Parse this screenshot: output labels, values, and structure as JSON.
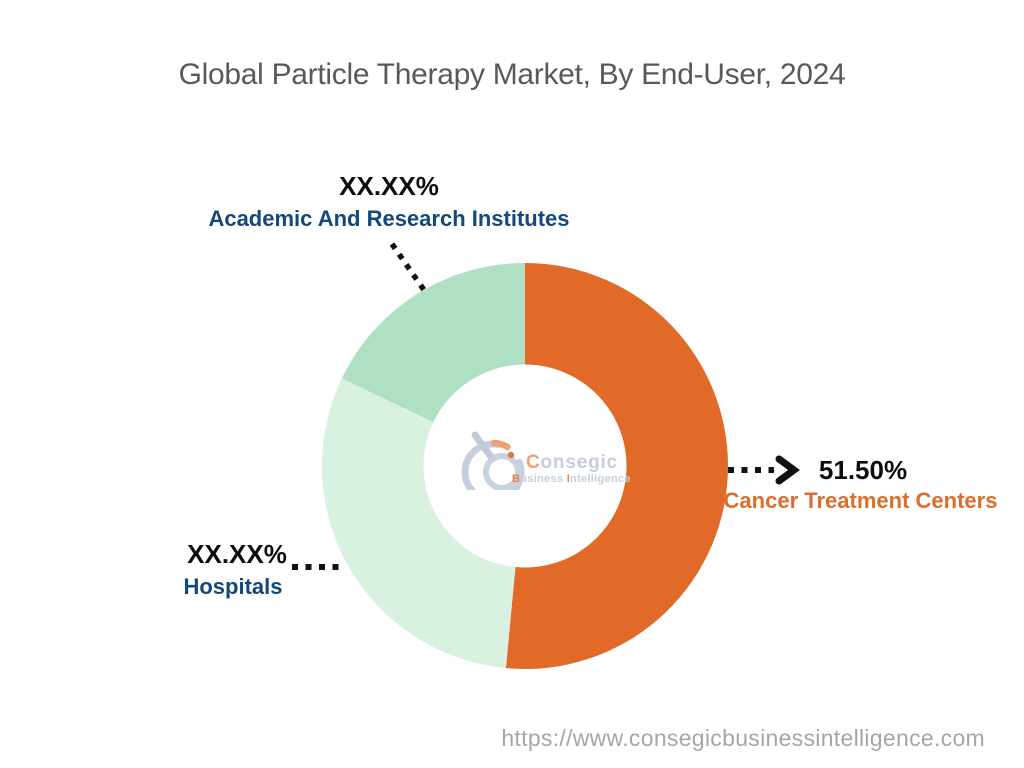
{
  "header": {
    "title": "Global Particle Therapy Market, By End-User, 2024"
  },
  "footer": {
    "url": "https://www.consegicbusinessintelligence.com"
  },
  "watermark": {
    "brand_first_letter": "C",
    "brand_rest": "onsegic",
    "tagline_word1_first": "B",
    "tagline_word1_rest": "usiness",
    "tagline_word2_first": "I",
    "tagline_word2_rest": "ntelligence"
  },
  "colors": {
    "title_text": "#59595B",
    "pct_text": "#0D0D0D",
    "navy_label": "#14477C",
    "orange_label": "#DC6E2D",
    "leader_line": "#111111",
    "footer_text": "#A6A6A6",
    "logo_gray_blue": "#C6CFDF",
    "logo_text_gray": "#C5CDDC",
    "logo_orange": "#E8823E",
    "logo_orange_light": "#ECA173"
  },
  "chart_data": {
    "type": "pie",
    "subtype": "donut",
    "title": "Global Particle Therapy Market, By End-User, 2024",
    "unit": "%",
    "direction": "clockwise",
    "start_angle_deg": 0,
    "donut_hole_ratio": 0.5,
    "legend_position": "callout-labels",
    "segments": [
      {
        "label": "Cancer Treatment Centers",
        "value_label": "51.50%",
        "share_pct": 51.5,
        "color": "#E26A28",
        "label_color": "#DC6E2D"
      },
      {
        "label": "Hospitals",
        "value_label": "XX.XX%",
        "share_pct": 30.6,
        "color": "#D9F1E0",
        "label_color": "#14477C"
      },
      {
        "label": "Academic And Research Institutes",
        "value_label": "XX.XX%",
        "share_pct": 17.9,
        "color": "#B0E0C3",
        "label_color": "#14477C"
      }
    ]
  }
}
